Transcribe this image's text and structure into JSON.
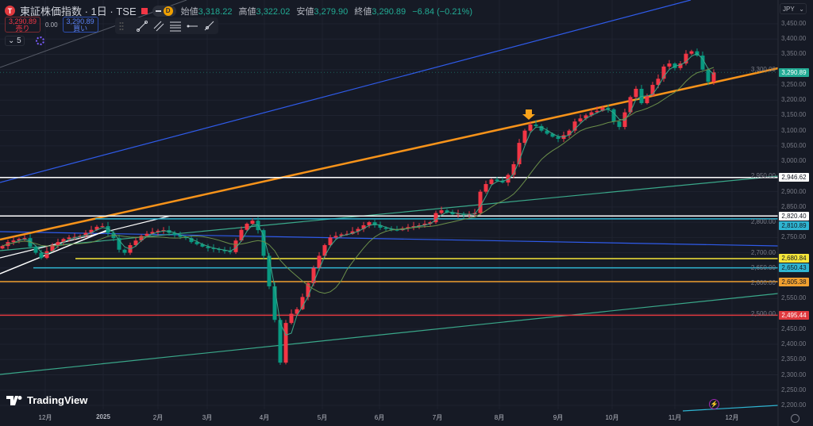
{
  "header": {
    "symbol_title": "東証株価指数 · 1日 · TSE",
    "interval_badge": "D",
    "ohlc": [
      {
        "label": "始値",
        "value": "3,318.22"
      },
      {
        "label": "高値",
        "value": "3,322.02"
      },
      {
        "label": "安値",
        "value": "3,279.90"
      },
      {
        "label": "終値",
        "value": "3,290.89"
      }
    ],
    "change": "−6.84 (−0.21%)"
  },
  "trade": {
    "sell_price": "3,290.89",
    "sell_label": "売り",
    "spread": "0.00",
    "buy_price": "3,290.89",
    "buy_label": "買い"
  },
  "indicators_collapsed_count": "5",
  "currency": "JPY",
  "branding": "TradingView",
  "colors": {
    "up": "#f23645",
    "down": "#089981",
    "background": "#161a25",
    "trendline": "#f7931a",
    "last_price": "#22ab94"
  },
  "chart_data": {
    "type": "candlestick",
    "up_color_meaning": "red = rising, teal = falling",
    "ylim": [
      2180,
      3470
    ],
    "y_ticks": [
      "3,450.00",
      "3,400.00",
      "3,350.00",
      "3,300.00",
      "3,250.00",
      "3,200.00",
      "3,150.00",
      "3,100.00",
      "3,050.00",
      "3,000.00",
      "2,950.00",
      "2,900.00",
      "2,850.00",
      "2,800.00",
      "2,750.00",
      "2,700.00",
      "2,650.00",
      "2,600.00",
      "2,550.00",
      "2,500.00",
      "2,450.00",
      "2,400.00",
      "2,350.00",
      "2,300.00",
      "2,250.00",
      "2,200.00"
    ],
    "x_ticks": [
      "12月",
      "2025",
      "2月",
      "3月",
      "4月",
      "5月",
      "6月",
      "7月",
      "8月",
      "9月",
      "10月",
      "11月",
      "12月"
    ],
    "closes": [
      2722,
      2735,
      2740,
      2745,
      2748,
      2720,
      2700,
      2683,
      2705,
      2725,
      2735,
      2745,
      2750,
      2752,
      2755,
      2765,
      2775,
      2785,
      2787,
      2765,
      2748,
      2710,
      2700,
      2725,
      2740,
      2755,
      2762,
      2768,
      2772,
      2774,
      2765,
      2758,
      2752,
      2748,
      2735,
      2728,
      2720,
      2715,
      2712,
      2709,
      2705,
      2702,
      2740,
      2775,
      2795,
      2805,
      2774,
      2690,
      2590,
      2480,
      2340,
      2470,
      2500,
      2515,
      2555,
      2600,
      2650,
      2690,
      2725,
      2750,
      2755,
      2760,
      2762,
      2770,
      2778,
      2790,
      2800,
      2790,
      2782,
      2778,
      2775,
      2774,
      2780,
      2784,
      2787,
      2790,
      2795,
      2800,
      2830,
      2839,
      2832,
      2826,
      2828,
      2824,
      2826,
      2830,
      2900,
      2925,
      2940,
      2935,
      2930,
      2955,
      2990,
      3060,
      3100,
      3120,
      3115,
      3100,
      3090,
      3080,
      3073,
      3085,
      3100,
      3130,
      3140,
      3150,
      3160,
      3165,
      3175,
      3170,
      3130,
      3112,
      3160,
      3210,
      3237,
      3190,
      3215,
      3250,
      3270,
      3310,
      3320,
      3305,
      3320,
      3352,
      3360,
      3346,
      3300,
      3260,
      3290.89
    ],
    "last_price": "3,290.89",
    "horizontal_levels": [
      {
        "value": "2,946.62",
        "color": "#ffffff"
      },
      {
        "value": "2,820.40",
        "color": "#ffffff"
      },
      {
        "value": "2,810.89",
        "color": "#2fb5d2"
      },
      {
        "value": "2,680.84",
        "color": "#f5e63a"
      },
      {
        "value": "2,650.43",
        "color": "#2fb5d2"
      },
      {
        "value": "2,605.38",
        "color": "#f0a030"
      },
      {
        "value": "2,495.44",
        "color": "#e0393e"
      }
    ]
  }
}
